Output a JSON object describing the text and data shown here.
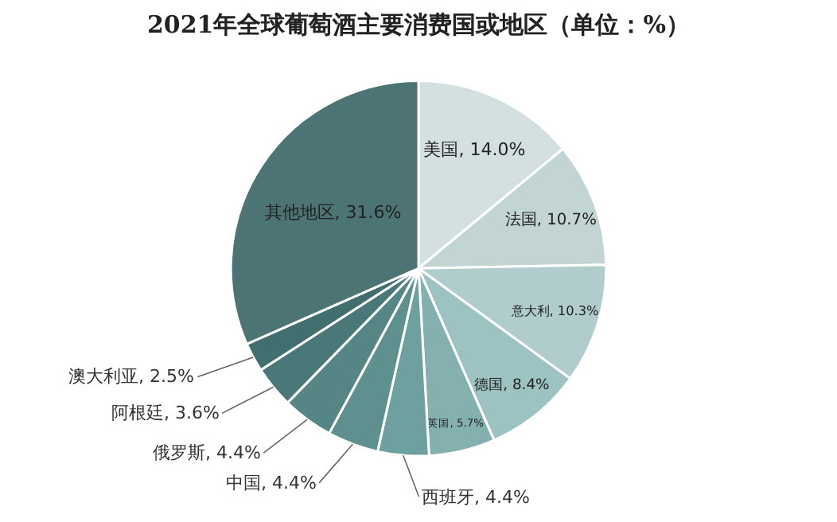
{
  "chart_data": {
    "type": "pie",
    "title": "2021年全球葡萄酒主要消费国或地区（单位：%）",
    "categories": [
      "美国",
      "法国",
      "意大利",
      "德国",
      "英国",
      "西班牙",
      "中国",
      "俄罗斯",
      "阿根廷",
      "澳大利亚",
      "其他地区"
    ],
    "values": [
      14.0,
      10.7,
      10.3,
      8.4,
      5.7,
      4.4,
      4.4,
      4.4,
      3.6,
      2.5,
      31.6
    ],
    "value_labels": [
      "14.0%",
      "10.7%",
      "10.3%",
      "8.4%",
      "5.7%",
      "4.4%",
      "4.4%",
      "4.4%",
      "3.6%",
      "2.5%",
      "31.6%"
    ],
    "colors": [
      "#d4e0e0",
      "#c2d4d4",
      "#b0cccc",
      "#9dc2c2",
      "#85b0b0",
      "#6fa0a0",
      "#5e9090",
      "#558585",
      "#4a7878",
      "#416e6e",
      "#4d7474"
    ],
    "legend": false
  }
}
